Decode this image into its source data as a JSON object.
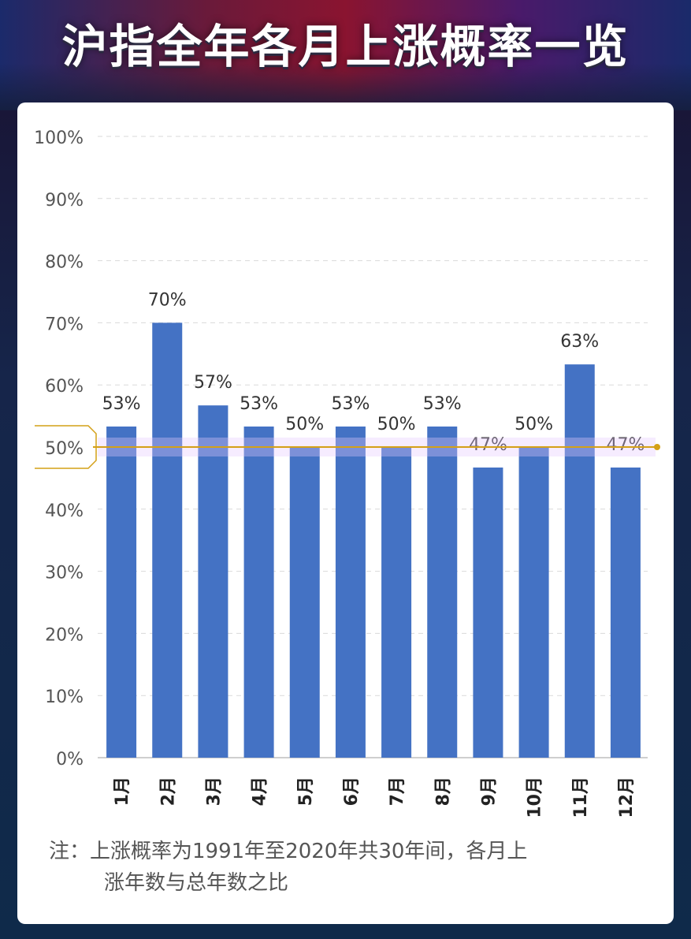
{
  "title": "沪指全年各月上涨概率一览",
  "note": {
    "label": "注：",
    "text_line1": "上涨概率为1991年至2020年共30年间，各月上",
    "text_line2": "涨年数与总年数之比"
  },
  "colors": {
    "bar": "#4472C4",
    "reference_line": "#D4A017",
    "axis_text": "#555555",
    "label_text": "#333333"
  },
  "chart_data": {
    "type": "bar",
    "categories": [
      "1月",
      "2月",
      "3月",
      "4月",
      "5月",
      "6月",
      "7月",
      "8月",
      "9月",
      "10月",
      "11月",
      "12月"
    ],
    "values": [
      53.3,
      70,
      56.7,
      53.3,
      50,
      53.3,
      50,
      53.3,
      46.7,
      50,
      63.3,
      46.7
    ],
    "data_labels": [
      "53%",
      "70%",
      "57%",
      "53%",
      "50%",
      "53%",
      "50%",
      "53%",
      "47%",
      "50%",
      "63%",
      "47%"
    ],
    "y_ticks": [
      "0%",
      "10%",
      "20%",
      "30%",
      "40%",
      "50%",
      "60%",
      "70%",
      "80%",
      "90%",
      "100%"
    ],
    "ylim": [
      0,
      100
    ],
    "reference_line": 50,
    "grid": true,
    "legend": "none"
  }
}
